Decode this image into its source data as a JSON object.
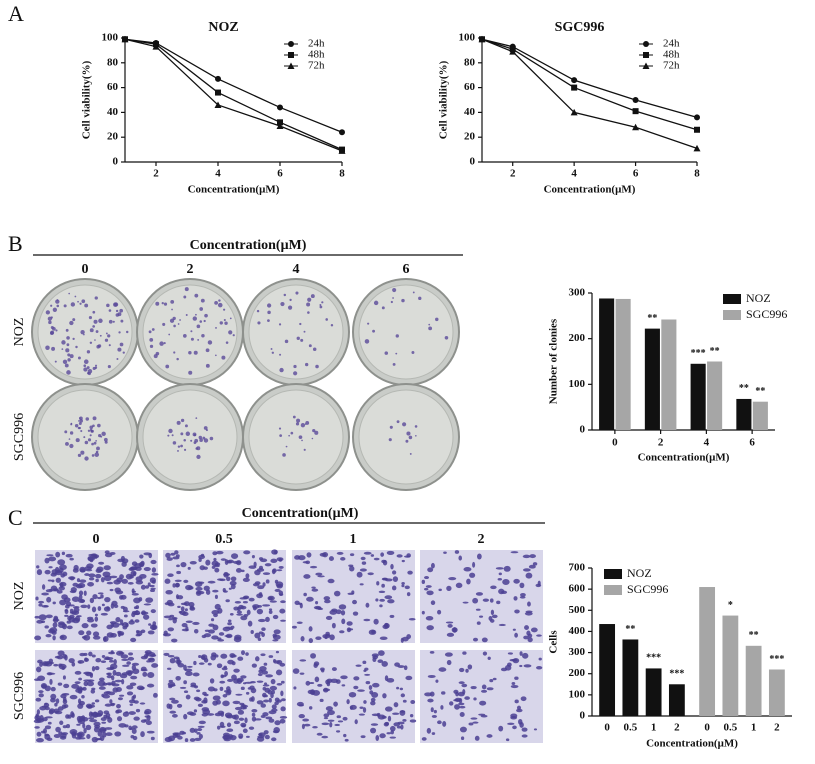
{
  "panel_labels": [
    "A",
    "B",
    "C"
  ],
  "colony_images": {
    "title": "Concentration(μM)",
    "columns": [
      "0",
      "2",
      "4",
      "6"
    ],
    "rows": [
      "NOZ",
      "SGC996"
    ]
  },
  "migration_images": {
    "title": "Concentration(μM)",
    "columns": [
      "0",
      "0.5",
      "1",
      "2"
    ],
    "rows": [
      "NOZ",
      "SGC996"
    ]
  },
  "chart_data": [
    {
      "type": "line",
      "title": "NOZ",
      "x_label": "Concentration(μM)",
      "y_label": "Cell viability(%)",
      "x": [
        1,
        2,
        4,
        6,
        8
      ],
      "xlim": [
        1,
        8
      ],
      "xticks": [
        2,
        4,
        6,
        8
      ],
      "ylim": [
        0,
        100
      ],
      "yticks": [
        0,
        20,
        40,
        60,
        80,
        100
      ],
      "legend": "upper right",
      "series": [
        {
          "name": "24h",
          "color": "#111111",
          "marker": "circle",
          "values": [
            99,
            96,
            67,
            44,
            24
          ]
        },
        {
          "name": "48h",
          "color": "#111111",
          "marker": "square",
          "values": [
            99,
            95,
            56,
            32,
            10
          ]
        },
        {
          "name": "72h",
          "color": "#111111",
          "marker": "triangle",
          "values": [
            99,
            93,
            46,
            29,
            9
          ]
        }
      ]
    },
    {
      "type": "line",
      "title": "SGC996",
      "x_label": "Concentration(μM)",
      "y_label": "Cell viability(%)",
      "x": [
        1,
        2,
        4,
        6,
        8
      ],
      "xlim": [
        1,
        8
      ],
      "xticks": [
        2,
        4,
        6,
        8
      ],
      "ylim": [
        0,
        100
      ],
      "yticks": [
        0,
        20,
        40,
        60,
        80,
        100
      ],
      "legend": "upper right",
      "series": [
        {
          "name": "24h",
          "color": "#111111",
          "marker": "circle",
          "values": [
            99,
            93,
            66,
            50,
            36
          ]
        },
        {
          "name": "48h",
          "color": "#111111",
          "marker": "square",
          "values": [
            99,
            91,
            60,
            41,
            26
          ]
        },
        {
          "name": "72h",
          "color": "#111111",
          "marker": "triangle",
          "values": [
            99,
            89,
            40,
            28,
            11
          ]
        }
      ]
    },
    {
      "type": "bar",
      "layout": "grouped",
      "x_label": "Concentration(μM)",
      "y_label": "Number of clonies",
      "categories": [
        "0",
        "2",
        "4",
        "6"
      ],
      "ylim": [
        0,
        300
      ],
      "yticks": [
        0,
        100,
        200,
        300
      ],
      "legend": "upper right",
      "series": [
        {
          "name": "NOZ",
          "color": "#111111",
          "values": [
            288,
            222,
            145,
            68
          ],
          "annotations": [
            null,
            "**",
            "***",
            "**"
          ]
        },
        {
          "name": "SGC996",
          "color": "#a6a6a6",
          "values": [
            287,
            242,
            150,
            62
          ],
          "annotations": [
            null,
            null,
            "**",
            "**"
          ]
        }
      ]
    },
    {
      "type": "bar",
      "layout": "blocks",
      "x_label": "Concentration(μM)",
      "y_label": "Cells",
      "categories": [
        "0",
        "0.5",
        "1",
        "2"
      ],
      "ylim": [
        0,
        700
      ],
      "yticks": [
        0,
        100,
        200,
        300,
        400,
        500,
        600,
        700
      ],
      "legend": "upper left",
      "series": [
        {
          "name": "NOZ",
          "color": "#111111",
          "values": [
            435,
            362,
            225,
            150
          ],
          "annotations": [
            null,
            "**",
            "***",
            "***"
          ]
        },
        {
          "name": "SGC996",
          "color": "#a6a6a6",
          "values": [
            610,
            475,
            332,
            220
          ],
          "annotations": [
            null,
            "*",
            "**",
            "***"
          ]
        }
      ]
    }
  ]
}
